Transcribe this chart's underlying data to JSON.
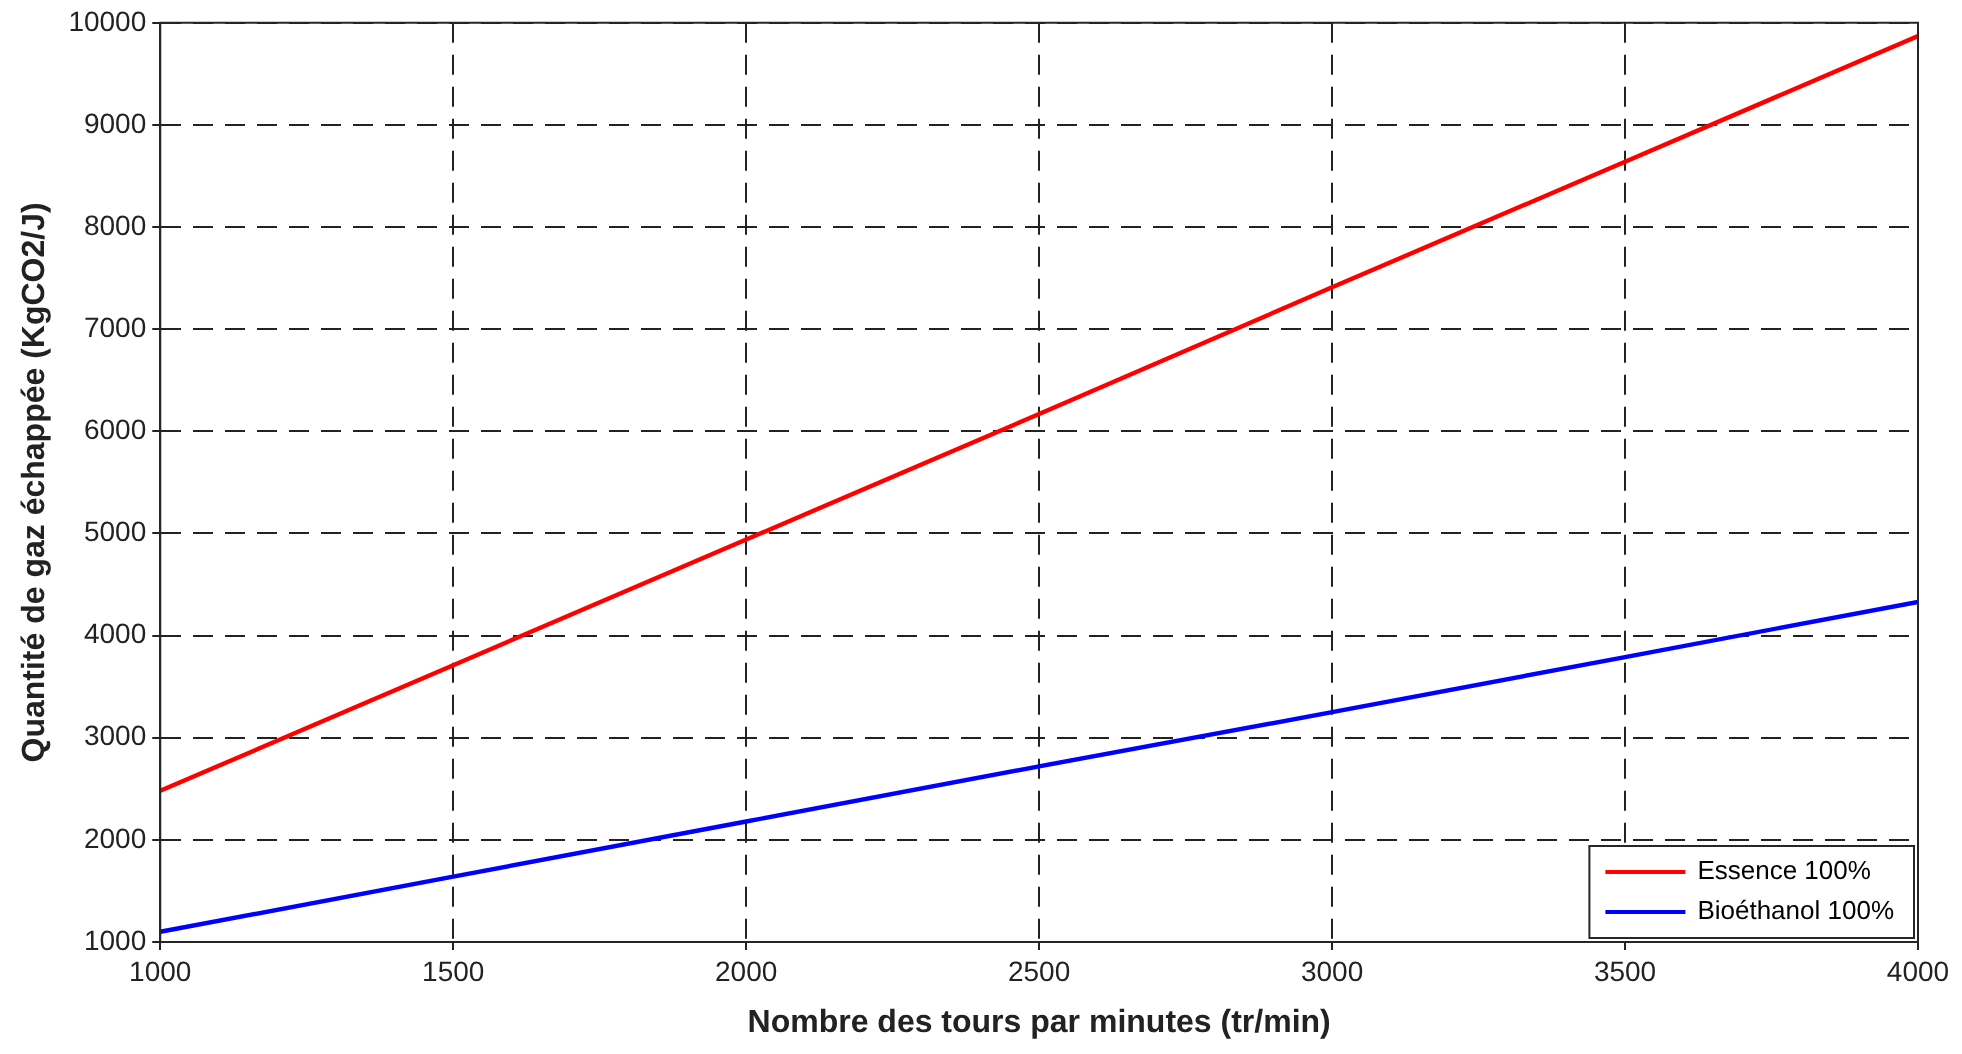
{
  "chart_data": {
    "type": "line",
    "xlabel": "Nombre des tours par minutes (tr/min)",
    "ylabel": "Quantité de gaz échappée (KgCO2/J)",
    "x": [
      1000,
      1500,
      2000,
      2500,
      3000,
      3500,
      4000
    ],
    "series": [
      {
        "name": "Essence 100%",
        "color": "#ff0000",
        "values": [
          2480,
          3710,
          4940,
          6170,
          7410,
          8640,
          9870
        ]
      },
      {
        "name": "Bioéthanol 100%",
        "color": "#0000ff",
        "values": [
          1100,
          1640,
          2180,
          2720,
          3250,
          3790,
          4330
        ]
      }
    ],
    "xlim": [
      1000,
      4000
    ],
    "xticks": [
      1000,
      1500,
      2000,
      2500,
      3000,
      3500,
      4000
    ],
    "ylim": [
      1000,
      10000
    ],
    "yticks": [
      1000,
      2000,
      3000,
      4000,
      5000,
      6000,
      7000,
      8000,
      9000,
      10000
    ],
    "grid": true,
    "legend": "bottom right",
    "marker": "none",
    "line_style": "solid"
  }
}
